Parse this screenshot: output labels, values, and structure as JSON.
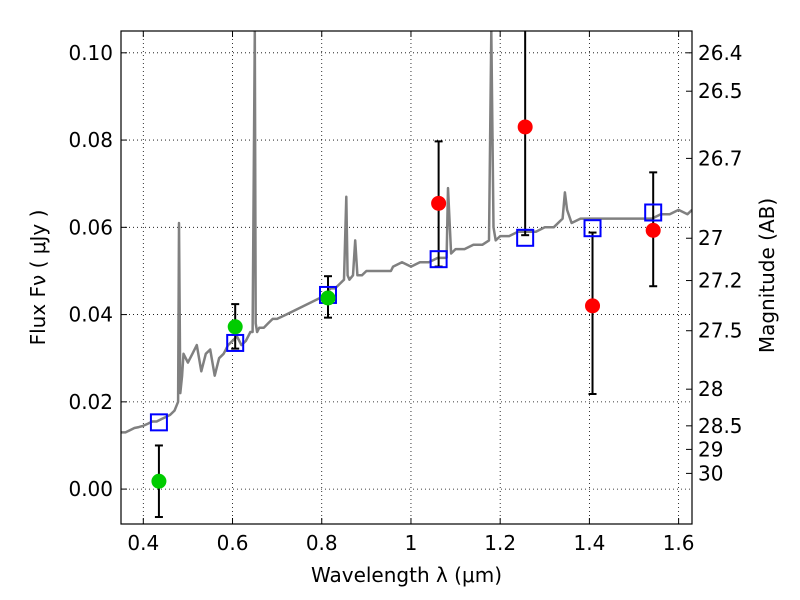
{
  "chart_data": {
    "type": "scatter",
    "xlabel": "Wavelength  λ (μm)",
    "ylabel": "Flux  Fν  ( μJy )",
    "ylabel_right": "Magnitude (AB)",
    "xlim": [
      0.35,
      1.63
    ],
    "ylim": [
      -0.008,
      0.105
    ],
    "grid": true,
    "grid_style": "dotted",
    "x_ticks": [
      0.4,
      0.6,
      0.8,
      1.0,
      1.2,
      1.4,
      1.6
    ],
    "x_tick_labels": [
      "0.4",
      "0.6",
      "0.8",
      "1",
      "1.2",
      "1.4",
      "1.6"
    ],
    "y_ticks": [
      0.0,
      0.02,
      0.04,
      0.06,
      0.08,
      0.1
    ],
    "y_tick_labels": [
      "0.00",
      "0.02",
      "0.04",
      "0.06",
      "0.08",
      "0.10"
    ],
    "right_ticks": [
      {
        "label": "26.4",
        "flux": 0.1
      },
      {
        "label": "26.5",
        "flux": 0.0912
      },
      {
        "label": "26.7",
        "flux": 0.0758
      },
      {
        "label": "27",
        "flux": 0.0575
      },
      {
        "label": "27.2",
        "flux": 0.0478
      },
      {
        "label": "27.5",
        "flux": 0.0363
      },
      {
        "label": "28",
        "flux": 0.0229
      },
      {
        "label": "28.5",
        "flux": 0.0145
      },
      {
        "label": "29",
        "flux": 0.0091
      },
      {
        "label": "30",
        "flux": 0.0036
      }
    ],
    "series": [
      {
        "kind": "spectrum",
        "color": "#808080",
        "x": [
          0.35,
          0.36,
          0.37,
          0.38,
          0.39,
          0.4,
          0.41,
          0.42,
          0.43,
          0.44,
          0.45,
          0.46,
          0.47,
          0.478,
          0.48,
          0.483,
          0.487,
          0.49,
          0.495,
          0.5,
          0.51,
          0.52,
          0.53,
          0.54,
          0.55,
          0.56,
          0.57,
          0.58,
          0.59,
          0.6,
          0.61,
          0.62,
          0.63,
          0.64,
          0.645,
          0.65,
          0.652,
          0.655,
          0.66,
          0.67,
          0.68,
          0.69,
          0.7,
          0.72,
          0.74,
          0.76,
          0.78,
          0.8,
          0.81,
          0.82,
          0.83,
          0.84,
          0.85,
          0.855,
          0.858,
          0.862,
          0.87,
          0.875,
          0.88,
          0.89,
          0.9,
          0.92,
          0.94,
          0.95,
          0.955,
          0.96,
          0.98,
          1.0,
          1.02,
          1.04,
          1.06,
          1.08,
          1.083,
          1.09,
          1.1,
          1.12,
          1.14,
          1.16,
          1.175,
          1.18,
          1.185,
          1.19,
          1.2,
          1.22,
          1.24,
          1.26,
          1.28,
          1.3,
          1.32,
          1.34,
          1.345,
          1.35,
          1.36,
          1.38,
          1.4,
          1.42,
          1.44,
          1.46,
          1.48,
          1.5,
          1.52,
          1.54,
          1.56,
          1.58,
          1.6,
          1.62,
          1.63
        ],
        "y": [
          0.013,
          0.013,
          0.0135,
          0.014,
          0.0142,
          0.0145,
          0.015,
          0.0155,
          0.0155,
          0.016,
          0.0165,
          0.017,
          0.018,
          0.02,
          0.061,
          0.022,
          0.026,
          0.031,
          0.03,
          0.029,
          0.031,
          0.033,
          0.027,
          0.031,
          0.032,
          0.026,
          0.03,
          0.031,
          0.033,
          0.034,
          0.035,
          0.033,
          0.034,
          0.036,
          0.036,
          0.105,
          0.038,
          0.036,
          0.037,
          0.037,
          0.038,
          0.039,
          0.039,
          0.04,
          0.041,
          0.042,
          0.043,
          0.044,
          0.045,
          0.046,
          0.046,
          0.047,
          0.048,
          0.067,
          0.049,
          0.048,
          0.049,
          0.057,
          0.049,
          0.049,
          0.05,
          0.05,
          0.05,
          0.05,
          0.05,
          0.051,
          0.052,
          0.051,
          0.052,
          0.052,
          0.053,
          0.053,
          0.069,
          0.054,
          0.055,
          0.055,
          0.056,
          0.056,
          0.057,
          0.105,
          0.06,
          0.057,
          0.058,
          0.058,
          0.059,
          0.059,
          0.059,
          0.06,
          0.06,
          0.062,
          0.068,
          0.064,
          0.061,
          0.062,
          0.062,
          0.062,
          0.062,
          0.062,
          0.062,
          0.062,
          0.062,
          0.062,
          0.063,
          0.063,
          0.064,
          0.063,
          0.064
        ]
      },
      {
        "kind": "model-photometry",
        "marker": "open-square",
        "color": "#0000ff",
        "x": [
          0.435,
          0.606,
          0.814,
          1.062,
          1.256,
          1.407,
          1.543
        ],
        "y": [
          0.0153,
          0.0335,
          0.0445,
          0.0527,
          0.0576,
          0.0598,
          0.0634
        ]
      },
      {
        "kind": "observed",
        "marker": "filled-circle",
        "color": "#00cc00",
        "x": [
          0.435,
          0.606,
          0.814
        ],
        "y": [
          0.0018,
          0.0372,
          0.0438
        ],
        "yerr_low": [
          0.0082,
          0.005,
          0.0045
        ],
        "yerr_high": [
          0.0082,
          0.0052,
          0.005
        ]
      },
      {
        "kind": "observed",
        "marker": "filled-circle",
        "color": "#ff0000",
        "x": [
          1.062,
          1.256,
          1.407,
          1.543
        ],
        "y": [
          0.0655,
          0.083,
          0.042,
          0.0593
        ],
        "yerr_low": [
          0.0145,
          0.0248,
          0.0202,
          0.0128
        ],
        "yerr_high": [
          0.0142,
          0.03,
          0.0168,
          0.0133
        ]
      }
    ]
  }
}
